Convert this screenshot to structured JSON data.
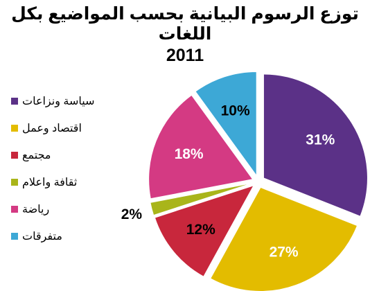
{
  "chart_data": {
    "type": "pie",
    "title_line1": "توزع الرسوم البيانية بحسب المواضيع بكل اللغات",
    "title_line2": "2011",
    "unit": "%",
    "slices": [
      {
        "label": "سياسة ونزاعات",
        "value": 31,
        "color": "#5B3187",
        "text_color": "#ffffff"
      },
      {
        "label": "اقتصاد وعمل",
        "value": 27,
        "color": "#E3BC00",
        "text_color": "#ffffff"
      },
      {
        "label": "مجتمع",
        "value": 12,
        "color": "#C8273C",
        "text_color": "#000000"
      },
      {
        "label": "ثقافة واعلام",
        "value": 2,
        "color": "#A9B51A",
        "text_color": "#000000"
      },
      {
        "label": "رياضة",
        "value": 18,
        "color": "#D43A83",
        "text_color": "#ffffff"
      },
      {
        "label": "متفرقات",
        "value": 10,
        "color": "#3DA8D6",
        "text_color": "#000000"
      }
    ],
    "legend_position": "left",
    "start_angle": "12 o'clock",
    "direction": "clockwise",
    "exploded": true
  }
}
